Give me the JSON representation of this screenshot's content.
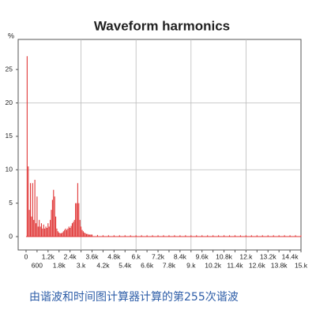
{
  "chart_data": {
    "type": "bar",
    "title": "Waveform harmonics",
    "y_label": "%",
    "color": "#e03535",
    "grid": true,
    "xlim": [
      -430,
      15000
    ],
    "ylim": [
      -2,
      29.5
    ],
    "yticks": [
      0,
      5,
      10,
      15,
      20,
      25
    ],
    "xticks": [
      0,
      600,
      {
        "value": 1200,
        "label": "1.2k"
      },
      {
        "value": 1800,
        "label": "1.8k"
      },
      {
        "value": 2400,
        "label": "2.4k"
      },
      {
        "value": 3000,
        "label": "3.k"
      },
      {
        "value": 3600,
        "label": "3.6k"
      },
      {
        "value": 4200,
        "label": "4.2k"
      },
      {
        "value": 4800,
        "label": "4.8k"
      },
      {
        "value": 5400,
        "label": "5.4k"
      },
      {
        "value": 6000,
        "label": "6.k"
      },
      {
        "value": 6600,
        "label": "6.6k"
      },
      {
        "value": 7200,
        "label": "7.2k"
      },
      {
        "value": 7800,
        "label": "7.8k"
      },
      {
        "value": 8400,
        "label": "8.4k"
      },
      {
        "value": 9000,
        "label": "9.k"
      },
      {
        "value": 9600,
        "label": "9.6k"
      },
      {
        "value": 10200,
        "label": "10.2k"
      },
      {
        "value": 10800,
        "label": "10.8k"
      },
      {
        "value": 11400,
        "label": "11.4k"
      },
      {
        "value": 12000,
        "label": "12.k"
      },
      {
        "value": 12600,
        "label": "12.6k"
      },
      {
        "value": 13200,
        "label": "13.2k"
      },
      {
        "value": 13800,
        "label": "13.8k"
      },
      {
        "value": 14400,
        "label": "14.4k"
      },
      {
        "value": 15000,
        "label": "15.k"
      }
    ],
    "x": [
      60,
      120,
      180,
      240,
      300,
      360,
      420,
      480,
      540,
      600,
      660,
      720,
      780,
      840,
      900,
      960,
      1020,
      1080,
      1140,
      1200,
      1260,
      1320,
      1380,
      1440,
      1500,
      1560,
      1620,
      1680,
      1740,
      1800,
      1860,
      1920,
      1980,
      2040,
      2100,
      2160,
      2220,
      2280,
      2340,
      2400,
      2460,
      2520,
      2580,
      2640,
      2700,
      2760,
      2820,
      2880,
      2940,
      3000,
      3060,
      3120,
      3180,
      3240,
      3300,
      3360,
      3420,
      3480,
      3540,
      3600,
      3900,
      4200,
      4500,
      4800,
      5100,
      5400,
      5700,
      6000,
      6300,
      6600,
      6900,
      7200,
      7500,
      7800,
      8100,
      8400,
      8700,
      9000,
      9300,
      9600,
      9900,
      10200,
      10500,
      10800,
      11100,
      11400,
      11700,
      12000,
      12300,
      12600,
      12900,
      13200,
      13500,
      13800,
      14100,
      14400,
      14700,
      15000
    ],
    "values": [
      27,
      10.5,
      4,
      8,
      3,
      8,
      2.5,
      8.5,
      2,
      6,
      1.5,
      2.5,
      1.5,
      2,
      1.2,
      1.8,
      1.2,
      1.5,
      1.3,
      2,
      1.5,
      2.5,
      4,
      5.5,
      7,
      6,
      3,
      1.2,
      0.8,
      0.6,
      0.5,
      0.5,
      0.6,
      0.8,
      1,
      1.2,
      1,
      1.2,
      1.5,
      1.3,
      1.6,
      2,
      2.2,
      2.5,
      5,
      5,
      8,
      5,
      2.5,
      1.5,
      1,
      0.8,
      0.6,
      0.5,
      0.4,
      0.4,
      0.3,
      0.3,
      0.3,
      0.3,
      0.25,
      0.2,
      0.2,
      0.2,
      0.2,
      0.2,
      0.2,
      0.2,
      0.2,
      0.2,
      0.2,
      0.2,
      0.2,
      0.2,
      0.2,
      0.2,
      0.2,
      0.2,
      0.2,
      0.2,
      0.2,
      0.2,
      0.2,
      0.2,
      0.2,
      0.2,
      0.2,
      0.2,
      0.2,
      0.2,
      0.2,
      0.2,
      0.2,
      0.2,
      0.2,
      0.2,
      0.2,
      0.2
    ]
  },
  "caption": "由谐波和时间图计算器计算的第255次谐波"
}
